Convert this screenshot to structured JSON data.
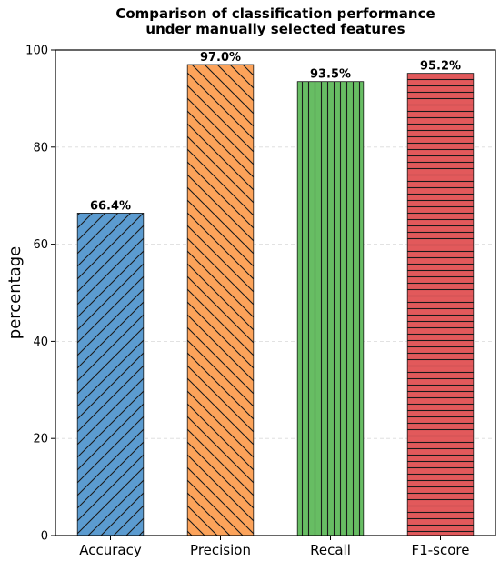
{
  "chart_data": {
    "type": "bar",
    "title_line1": "Comparison of classification performance",
    "title_line2": "under manually selected features",
    "xlabel": "",
    "ylabel": "percentage",
    "ylim": [
      0,
      100
    ],
    "yticks": [
      "0",
      "20",
      "40",
      "60",
      "80",
      "100"
    ],
    "grid": "horizontal-dashed",
    "categories": [
      "Accuracy",
      "Precision",
      "Recall",
      "F1-score"
    ],
    "values": [
      66.4,
      97.0,
      93.5,
      95.2
    ],
    "value_labels": [
      "66.4%",
      "97.0%",
      "93.5%",
      "95.2%"
    ],
    "colors": [
      "#5b9bd0",
      "#fca35a",
      "#67bd63",
      "#e2595b"
    ],
    "hatches": [
      "forward-diagonal",
      "back-diagonal",
      "vertical",
      "horizontal"
    ]
  }
}
